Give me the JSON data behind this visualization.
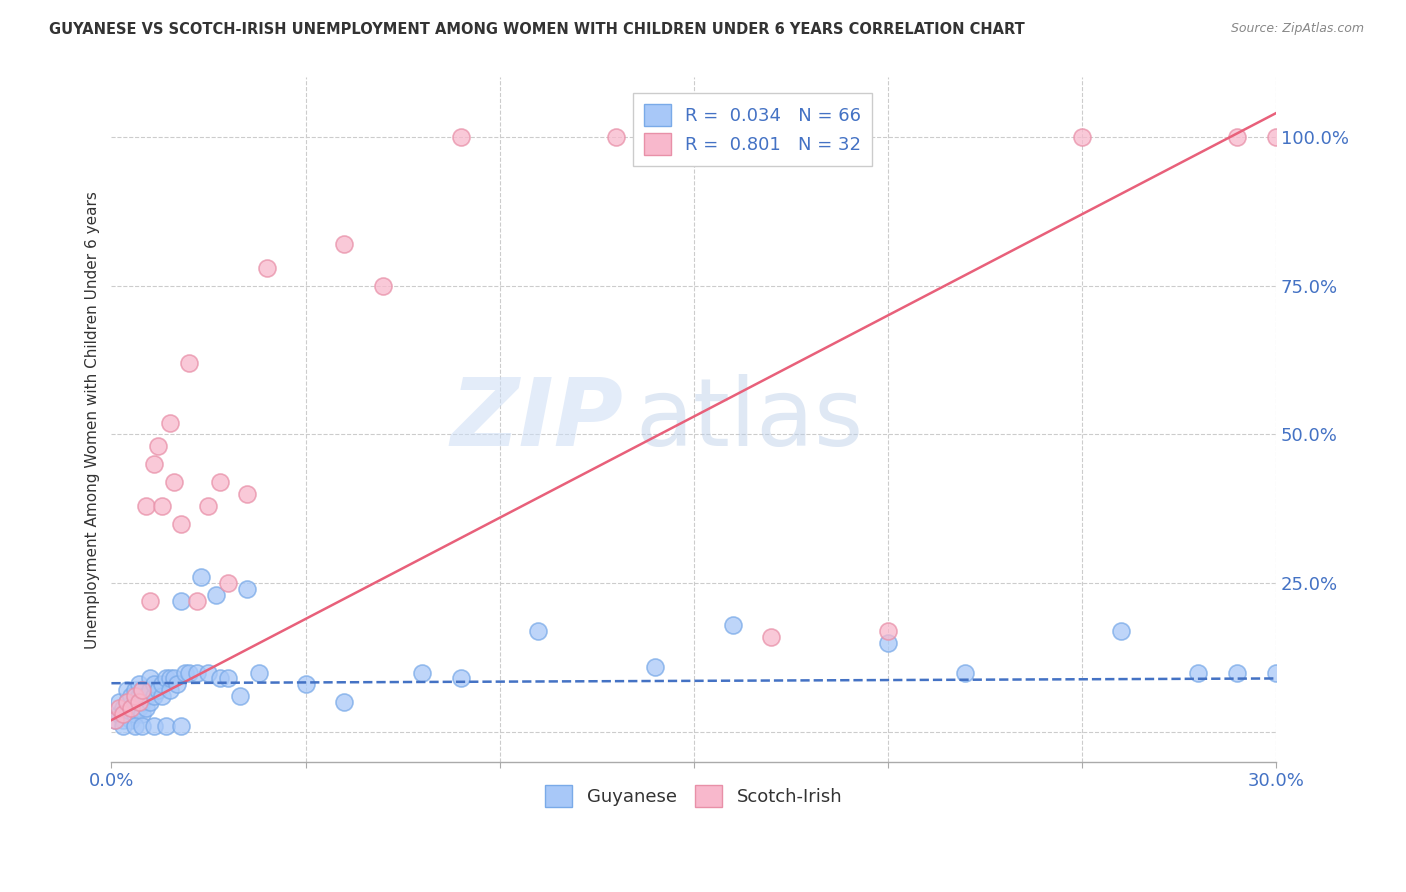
{
  "title": "GUYANESE VS SCOTCH-IRISH UNEMPLOYMENT AMONG WOMEN WITH CHILDREN UNDER 6 YEARS CORRELATION CHART",
  "source": "Source: ZipAtlas.com",
  "ylabel": "Unemployment Among Women with Children Under 6 years",
  "xlim": [
    0.0,
    0.3
  ],
  "ylim": [
    -0.05,
    1.1
  ],
  "xticks": [
    0.0,
    0.05,
    0.1,
    0.15,
    0.2,
    0.25,
    0.3
  ],
  "xticklabels": [
    "0.0%",
    "",
    "",
    "",
    "",
    "",
    "30.0%"
  ],
  "yticks": [
    0.0,
    0.25,
    0.5,
    0.75,
    1.0
  ],
  "yticklabels": [
    "",
    "25.0%",
    "50.0%",
    "75.0%",
    "100.0%"
  ],
  "guyanese_color": "#a8c8f8",
  "guyanese_edge_color": "#7aaae8",
  "scotch_irish_color": "#f8b8cc",
  "scotch_irish_edge_color": "#e890a8",
  "guyanese_line_color": "#4472c4",
  "scotch_irish_line_color": "#e8607a",
  "R_guyanese": 0.034,
  "N_guyanese": 66,
  "R_scotch_irish": 0.801,
  "N_scotch_irish": 32,
  "watermark_zip": "ZIP",
  "watermark_atlas": "atlas",
  "background_color": "#ffffff",
  "grid_color": "#cccccc",
  "title_color": "#333333",
  "source_color": "#888888",
  "axis_label_color": "#333333",
  "tick_label_color": "#4472c4",
  "legend_label_color": "#333333",
  "legend_value_color": "#4472c4",
  "guyanese_x": [
    0.001,
    0.002,
    0.002,
    0.003,
    0.003,
    0.004,
    0.004,
    0.004,
    0.005,
    0.005,
    0.005,
    0.006,
    0.006,
    0.006,
    0.007,
    0.007,
    0.007,
    0.008,
    0.008,
    0.008,
    0.009,
    0.009,
    0.01,
    0.01,
    0.01,
    0.011,
    0.011,
    0.012,
    0.013,
    0.013,
    0.014,
    0.015,
    0.015,
    0.016,
    0.017,
    0.018,
    0.019,
    0.02,
    0.022,
    0.023,
    0.025,
    0.027,
    0.028,
    0.03,
    0.033,
    0.035,
    0.038,
    0.05,
    0.06,
    0.08,
    0.09,
    0.11,
    0.14,
    0.16,
    0.2,
    0.22,
    0.26,
    0.28,
    0.29,
    0.3,
    0.003,
    0.006,
    0.008,
    0.011,
    0.014,
    0.018
  ],
  "guyanese_y": [
    0.02,
    0.03,
    0.05,
    0.02,
    0.04,
    0.03,
    0.05,
    0.07,
    0.02,
    0.04,
    0.06,
    0.03,
    0.05,
    0.07,
    0.04,
    0.06,
    0.08,
    0.03,
    0.05,
    0.07,
    0.04,
    0.06,
    0.05,
    0.07,
    0.09,
    0.06,
    0.08,
    0.07,
    0.06,
    0.08,
    0.09,
    0.07,
    0.09,
    0.09,
    0.08,
    0.22,
    0.1,
    0.1,
    0.1,
    0.26,
    0.1,
    0.23,
    0.09,
    0.09,
    0.06,
    0.24,
    0.1,
    0.08,
    0.05,
    0.1,
    0.09,
    0.17,
    0.11,
    0.18,
    0.15,
    0.1,
    0.17,
    0.1,
    0.1,
    0.1,
    0.01,
    0.01,
    0.01,
    0.01,
    0.01,
    0.01
  ],
  "scotch_irish_x": [
    0.001,
    0.002,
    0.003,
    0.004,
    0.005,
    0.006,
    0.007,
    0.008,
    0.009,
    0.01,
    0.011,
    0.012,
    0.013,
    0.015,
    0.016,
    0.018,
    0.02,
    0.022,
    0.025,
    0.028,
    0.03,
    0.035,
    0.04,
    0.06,
    0.07,
    0.09,
    0.13,
    0.17,
    0.2,
    0.25,
    0.29,
    0.3
  ],
  "scotch_irish_y": [
    0.02,
    0.04,
    0.03,
    0.05,
    0.04,
    0.06,
    0.05,
    0.07,
    0.38,
    0.22,
    0.45,
    0.48,
    0.38,
    0.52,
    0.42,
    0.35,
    0.62,
    0.22,
    0.38,
    0.42,
    0.25,
    0.4,
    0.78,
    0.82,
    0.75,
    1.0,
    1.0,
    0.16,
    0.17,
    1.0,
    1.0,
    1.0
  ],
  "pink_line_x0": 0.0,
  "pink_line_y0": 0.02,
  "pink_line_x1": 0.3,
  "pink_line_y1": 1.04,
  "blue_line_x0": 0.0,
  "blue_line_y0": 0.082,
  "blue_line_x1": 0.3,
  "blue_line_y1": 0.09
}
